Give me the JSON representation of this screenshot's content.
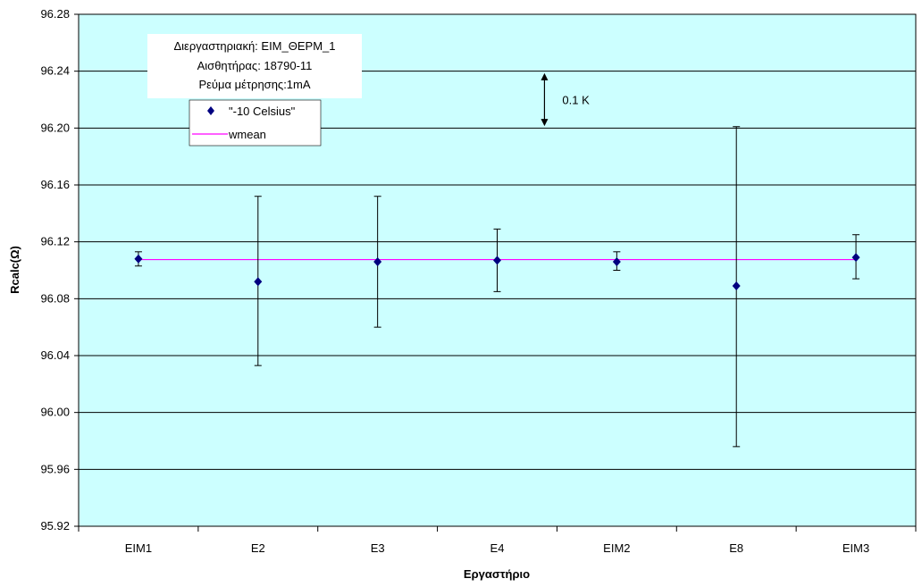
{
  "chart_data": {
    "type": "scatter",
    "title": "",
    "xlabel": "Εργαστήριο",
    "ylabel": "Rcalc(Ω)",
    "categories": [
      "EIM1",
      "E2",
      "E3",
      "E4",
      "EIM2",
      "E8",
      "EIM3"
    ],
    "ylim": [
      95.92,
      96.28
    ],
    "yticks": [
      "95.92",
      "95.96",
      "96.00",
      "96.04",
      "96.08",
      "96.12",
      "96.16",
      "96.20",
      "96.24",
      "96.28"
    ],
    "grid": true,
    "series": [
      {
        "name": "\"-10 Celsius\"",
        "color": "#000080",
        "marker": "diamond",
        "values": [
          96.108,
          96.092,
          96.106,
          96.107,
          96.106,
          96.089,
          96.109
        ],
        "err_low": [
          96.103,
          96.033,
          96.06,
          96.085,
          96.1,
          95.976,
          96.094
        ],
        "err_high": [
          96.113,
          96.152,
          96.152,
          96.129,
          96.113,
          96.201,
          96.125
        ]
      },
      {
        "name": "wmean",
        "color": "#ff00ff",
        "type": "line",
        "value": 96.1075
      }
    ],
    "info_box": [
      "Διεργαστηριακή: EIM_ΘΕΡΜ_1",
      "Αισθητήρας: 18790-11",
      "Ρεύμα μέτρησης:1mA"
    ],
    "annotation": {
      "label": "0.1 K",
      "y_from": 96.2014,
      "y_to": 96.2386,
      "between_categories": [
        3,
        4
      ]
    },
    "legend_position": "top-left",
    "plot_background": "#ccffff"
  }
}
